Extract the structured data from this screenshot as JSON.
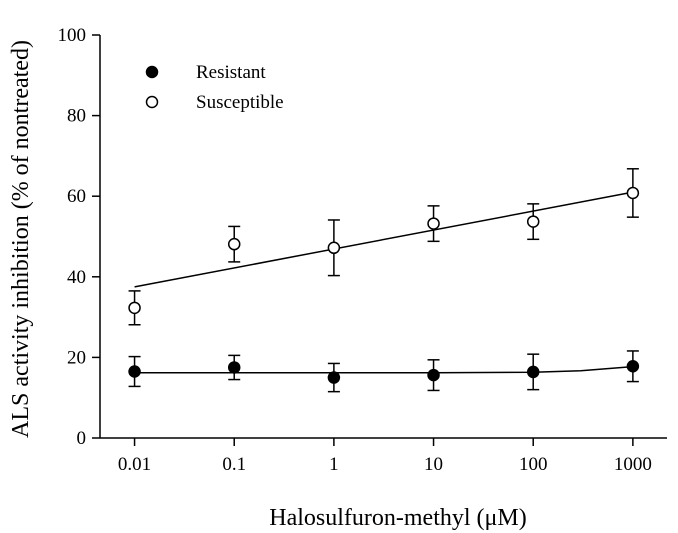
{
  "chart_data": {
    "type": "scatter",
    "xlabel": "Halosulfuron-methyl (μM)",
    "ylabel": "ALS activity inhibition (% of nontreated)",
    "x_scale": "log",
    "xlim": [
      0.0045,
      2200
    ],
    "ylim": [
      0,
      100
    ],
    "x_ticks": [
      0.01,
      0.1,
      1,
      10,
      100,
      1000
    ],
    "x_tick_labels": [
      "0.01",
      "0.1",
      "1",
      "10",
      "100",
      "1000"
    ],
    "y_ticks": [
      0,
      20,
      40,
      60,
      80,
      100
    ],
    "y_tick_labels": [
      "0",
      "20",
      "40",
      "60",
      "80",
      "100"
    ],
    "grid": false,
    "legend_position": "top-left",
    "series": [
      {
        "name": "Resistant",
        "marker": "filled-circle",
        "x": [
          0.01,
          0.1,
          1,
          10,
          100,
          1000
        ],
        "y": [
          16.5,
          17.5,
          15.0,
          15.6,
          16.4,
          17.8
        ],
        "error": [
          3.7,
          3.0,
          3.5,
          3.8,
          4.4,
          3.8
        ],
        "fit": {
          "x": [
            0.01,
            0.1,
            1,
            10,
            100,
            300,
            1000
          ],
          "y": [
            16.2,
            16.2,
            16.2,
            16.2,
            16.3,
            16.7,
            17.7
          ]
        }
      },
      {
        "name": "Susceptible",
        "marker": "open-circle",
        "x": [
          0.01,
          0.1,
          1,
          10,
          100,
          1000
        ],
        "y": [
          32.3,
          48.1,
          47.2,
          53.2,
          53.7,
          60.8
        ],
        "error": [
          4.2,
          4.4,
          6.9,
          4.4,
          4.4,
          6.0
        ],
        "fit": {
          "x": [
            0.01,
            1000
          ],
          "y": [
            37.5,
            61.0
          ]
        }
      }
    ]
  }
}
